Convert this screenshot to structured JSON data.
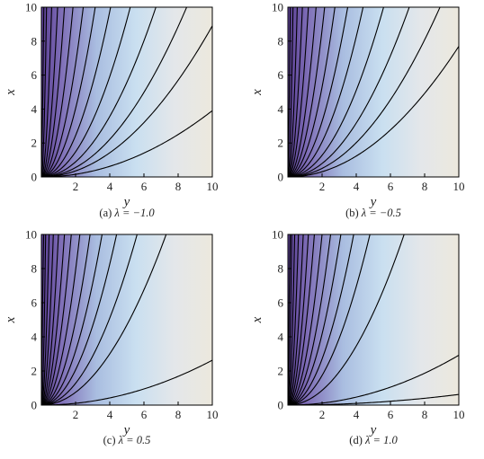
{
  "chart_data": [
    {
      "type": "contour",
      "caption_label": "(a)",
      "caption_text": "λ = −1.0",
      "xlabel": "y",
      "ylabel": "x",
      "xlim": [
        0,
        10
      ],
      "ylim": [
        0,
        10
      ],
      "xticks": [
        "2",
        "4",
        "6",
        "8",
        "10"
      ],
      "yticks": [
        "0",
        "2",
        "4",
        "6",
        "8",
        "10"
      ],
      "contour_x_at_top": [
        0.12,
        0.3,
        0.6,
        0.95,
        1.35,
        1.85,
        2.45,
        3.15,
        4.05,
        5.2,
        6.7,
        8.5,
        10.6,
        16
      ],
      "grid": false,
      "colormap": [
        "#5b3f95",
        "#8070b8",
        "#a9bde0",
        "#c9dff0",
        "#e4e7ea",
        "#ece8dd"
      ]
    },
    {
      "type": "contour",
      "caption_label": "(b)",
      "caption_text": "λ = −0.5",
      "xlabel": "y",
      "ylabel": "x",
      "xlim": [
        0,
        10
      ],
      "ylim": [
        0,
        10
      ],
      "xticks": [
        "2",
        "4",
        "6",
        "8",
        "10"
      ],
      "yticks": [
        "0",
        "2",
        "4",
        "6",
        "8",
        "10"
      ],
      "contour_x_at_top": [
        0.12,
        0.3,
        0.55,
        0.85,
        1.2,
        1.65,
        2.15,
        2.75,
        3.5,
        4.4,
        5.6,
        7.1,
        8.9,
        11.4
      ],
      "grid": false,
      "colormap": [
        "#5b3f95",
        "#8070b8",
        "#a9bde0",
        "#c9dff0",
        "#e4e7ea",
        "#ece8dd"
      ]
    },
    {
      "type": "contour",
      "caption_label": "(c)",
      "caption_text": "λ = 0.5",
      "xlabel": "y",
      "ylabel": "x",
      "xlim": [
        0,
        10
      ],
      "ylim": [
        0,
        10
      ],
      "xticks": [
        "2",
        "4",
        "6",
        "8",
        "10"
      ],
      "yticks": [
        "0",
        "2",
        "4",
        "6",
        "8",
        "10"
      ],
      "contour_x_at_top": [
        0.1,
        0.25,
        0.45,
        0.7,
        1.0,
        1.35,
        1.75,
        2.25,
        2.85,
        3.55,
        4.4,
        5.6,
        7.3,
        19.5
      ],
      "grid": false,
      "colormap": [
        "#5b3f95",
        "#8070b8",
        "#a9bde0",
        "#c9dff0",
        "#e4e7ea",
        "#ece8dd"
      ]
    },
    {
      "type": "contour",
      "caption_label": "(d)",
      "caption_text": "λ = 1.0",
      "xlabel": "y",
      "ylabel": "x",
      "xlim": [
        0,
        10
      ],
      "ylim": [
        0,
        10
      ],
      "xticks": [
        "2",
        "4",
        "6",
        "8",
        "10"
      ],
      "yticks": [
        "0",
        "2",
        "4",
        "6",
        "8",
        "10"
      ],
      "contour_x_at_top": [
        0.1,
        0.22,
        0.4,
        0.62,
        0.9,
        1.2,
        1.55,
        2.0,
        2.5,
        3.1,
        3.85,
        4.8,
        6.8,
        18.5,
        40
      ],
      "grid": false,
      "colormap": [
        "#5b3f95",
        "#8070b8",
        "#a9bde0",
        "#c9dff0",
        "#e4e7ea",
        "#ece8dd"
      ]
    }
  ]
}
